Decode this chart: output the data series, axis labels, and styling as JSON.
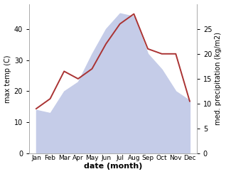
{
  "months": [
    "Jan",
    "Feb",
    "Mar",
    "Apr",
    "May",
    "Jun",
    "Jul",
    "Aug",
    "Sep",
    "Oct",
    "Nov",
    "Dec"
  ],
  "x": [
    0,
    1,
    2,
    3,
    4,
    5,
    6,
    7,
    8,
    9,
    10,
    11
  ],
  "max_temp": [
    14,
    13,
    20,
    23,
    32,
    40,
    45,
    44,
    32,
    27,
    20,
    17
  ],
  "precipitation": [
    9,
    11,
    16.5,
    15,
    17,
    22,
    26,
    28,
    21,
    20,
    20,
    10.5
  ],
  "temp_fill_color": "#c5cce8",
  "precip_color": "#aa3333",
  "ylabel_left": "max temp (C)",
  "ylabel_right": "med. precipitation (kg/m2)",
  "xlabel": "date (month)",
  "ylim_left": [
    0,
    48
  ],
  "ylim_right": [
    0,
    30
  ],
  "yticks_left": [
    0,
    10,
    20,
    30,
    40
  ],
  "yticks_right": [
    0,
    5,
    10,
    15,
    20,
    25
  ],
  "bg_color": "#ffffff",
  "spine_color": "#aaaaaa"
}
